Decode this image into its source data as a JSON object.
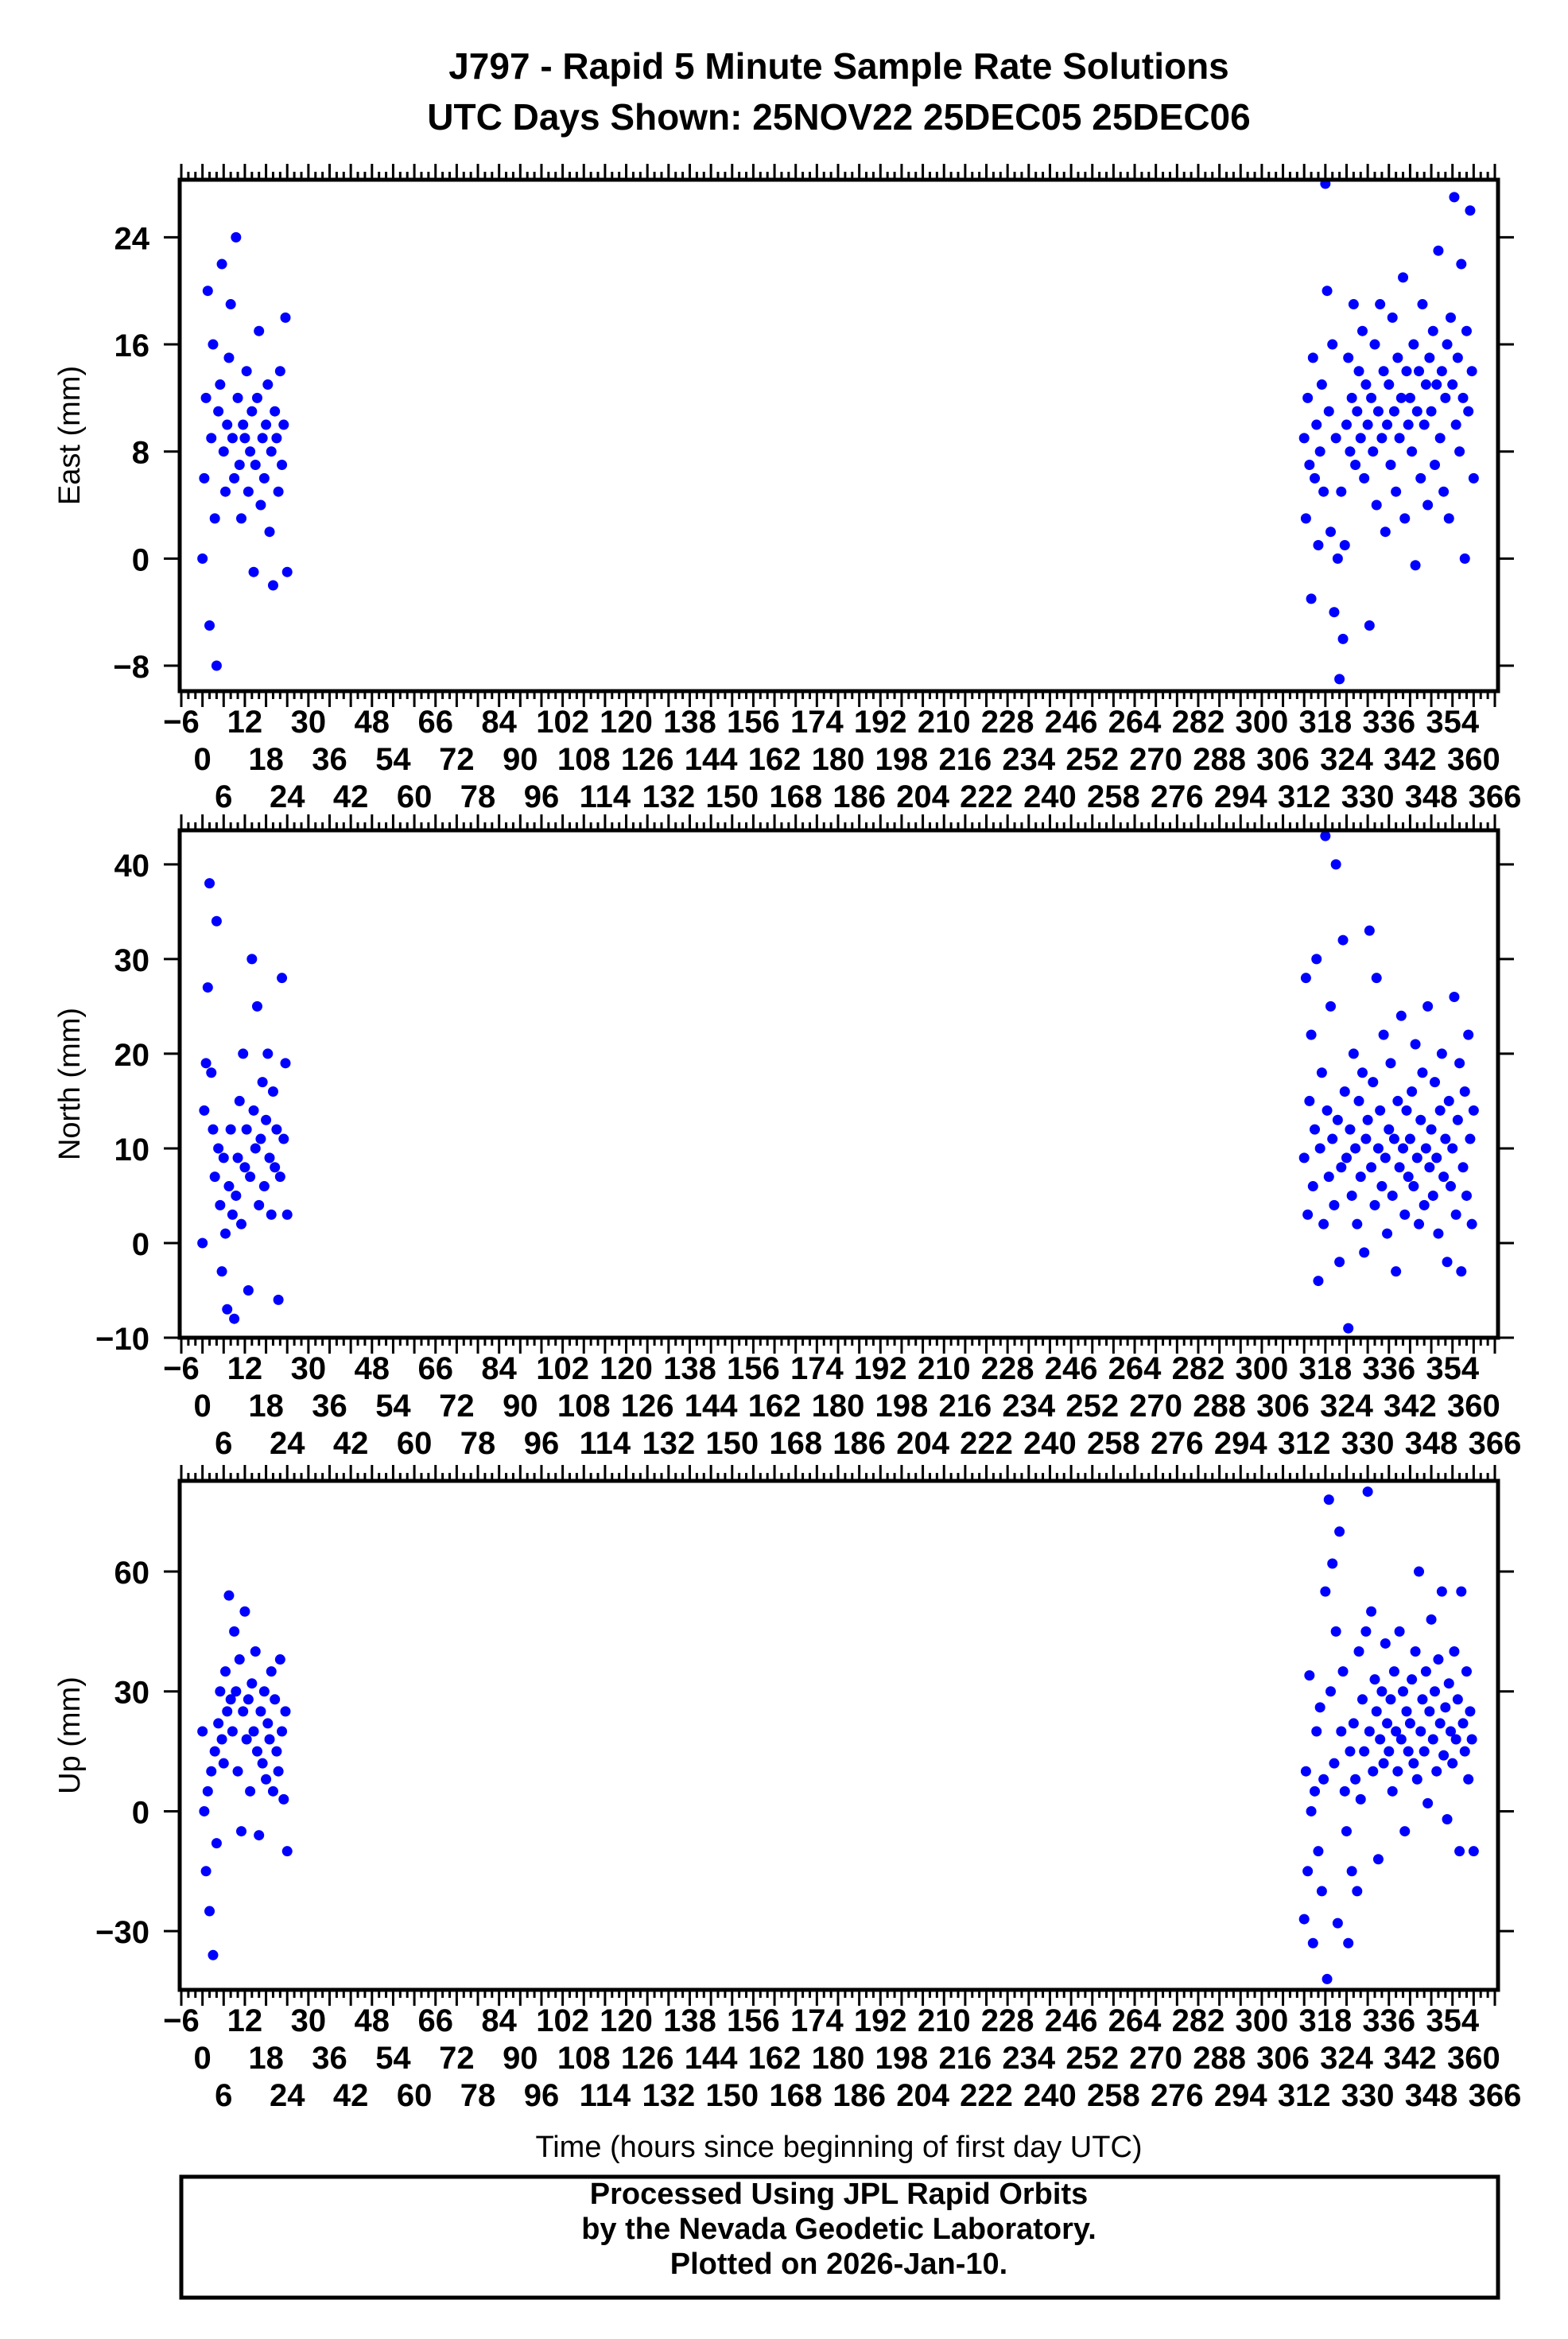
{
  "chart_data": {
    "type": "scatter",
    "title": "J797 - Rapid 5 Minute Sample Rate Solutions",
    "subtitle": "UTC Days Shown:  25NOV22 25DEC05 25DEC06",
    "xlabel": "Time (hours since beginning of first day UTC)",
    "xlim": [
      -6,
      366
    ],
    "xticks": {
      "start": -6,
      "end": 366,
      "step": 6,
      "minor_step": 2
    },
    "point_color": "#0000ff",
    "segments": [
      {
        "x_start": 0,
        "x_step": 0.5
      },
      {
        "x_start": 312,
        "x_step": 0.5
      }
    ],
    "panels": [
      {
        "name": "east",
        "ylabel": "East (mm)",
        "ylim": [
          -9.9,
          28.3
        ],
        "yticks": [
          -8,
          0,
          8,
          16,
          24
        ],
        "ytick_labels": [
          "−8",
          "0",
          "8",
          "16",
          "24"
        ],
        "series": [
          [
            0,
            6,
            12,
            20,
            -5,
            9,
            16,
            3,
            -8,
            11,
            13,
            22,
            8,
            5,
            10,
            15,
            19,
            9,
            6,
            24,
            12,
            7,
            3,
            10,
            9,
            14,
            5,
            8,
            11,
            -1,
            7,
            12,
            17,
            4,
            9,
            6,
            10,
            13,
            2,
            8,
            -2,
            11,
            9,
            5,
            14,
            7,
            10,
            18,
            -1
          ],
          [
            9,
            3,
            12,
            7,
            -3,
            15,
            6,
            10,
            1,
            8,
            13,
            5,
            28,
            20,
            11,
            2,
            16,
            -4,
            9,
            0,
            -9,
            5,
            -6,
            1,
            10,
            15,
            8,
            12,
            19,
            7,
            11,
            14,
            9,
            17,
            6,
            13,
            10,
            -5,
            12,
            8,
            16,
            4,
            11,
            19,
            9,
            14,
            2,
            10,
            13,
            7,
            18,
            11,
            5,
            15,
            9,
            12,
            21,
            3,
            14,
            10,
            12,
            8,
            16,
            -0.5,
            11,
            14,
            6,
            19,
            10,
            13,
            4,
            15,
            11,
            17,
            7,
            13,
            23,
            9,
            14,
            5,
            12,
            16,
            3,
            18,
            13,
            27,
            10,
            15,
            8,
            22,
            12,
            0,
            17,
            11,
            26,
            14,
            6
          ]
        ]
      },
      {
        "name": "north",
        "ylabel": "North (mm)",
        "ylim": [
          -10,
          43.6
        ],
        "yticks": [
          -10,
          0,
          10,
          20,
          30,
          40
        ],
        "ytick_labels": [
          "−10",
          "0",
          "10",
          "20",
          "30",
          "40"
        ],
        "series": [
          [
            0,
            14,
            19,
            27,
            38,
            18,
            12,
            7,
            34,
            10,
            4,
            -3,
            9,
            1,
            -7,
            6,
            12,
            3,
            -8,
            5,
            9,
            15,
            2,
            20,
            8,
            12,
            -5,
            7,
            30,
            14,
            10,
            25,
            4,
            11,
            17,
            6,
            13,
            20,
            9,
            3,
            16,
            8,
            12,
            -6,
            7,
            28,
            11,
            19,
            3
          ],
          [
            9,
            28,
            3,
            15,
            22,
            6,
            12,
            30,
            -4,
            10,
            18,
            2,
            43,
            14,
            7,
            25,
            11,
            4,
            40,
            13,
            -2,
            8,
            32,
            16,
            9,
            -9,
            12,
            5,
            20,
            10,
            2,
            15,
            7,
            18,
            -1,
            11,
            13,
            33,
            8,
            17,
            4,
            28,
            10,
            14,
            6,
            22,
            9,
            1,
            12,
            19,
            5,
            11,
            -3,
            15,
            8,
            24,
            10,
            3,
            14,
            7,
            11,
            16,
            6,
            21,
            9,
            2,
            13,
            18,
            4,
            10,
            25,
            8,
            12,
            5,
            17,
            9,
            1,
            14,
            20,
            7,
            11,
            -2,
            15,
            6,
            10,
            26,
            3,
            13,
            19,
            -3,
            8,
            16,
            5,
            22,
            11,
            2,
            14
          ]
        ]
      },
      {
        "name": "up",
        "ylabel": "Up (mm)",
        "ylim": [
          -44.7,
          82.7
        ],
        "yticks": [
          -30,
          0,
          30,
          60
        ],
        "ytick_labels": [
          "−30",
          "0",
          "30",
          "60"
        ],
        "series": [
          [
            20,
            0,
            -15,
            5,
            -25,
            10,
            -36,
            15,
            -8,
            22,
            30,
            18,
            12,
            35,
            25,
            54,
            28,
            20,
            45,
            30,
            10,
            38,
            -5,
            25,
            50,
            18,
            28,
            5,
            32,
            20,
            40,
            15,
            -6,
            25,
            12,
            30,
            8,
            22,
            18,
            35,
            5,
            28,
            15,
            10,
            38,
            20,
            3,
            25,
            -10
          ],
          [
            -27,
            10,
            -15,
            34,
            0,
            -33,
            5,
            20,
            -10,
            26,
            -20,
            8,
            55,
            -42,
            78,
            30,
            62,
            12,
            45,
            -28,
            70,
            20,
            35,
            5,
            -5,
            -33,
            15,
            -15,
            22,
            8,
            -20,
            40,
            3,
            28,
            15,
            45,
            80,
            20,
            50,
            10,
            33,
            25,
            -12,
            18,
            30,
            12,
            42,
            22,
            15,
            28,
            5,
            35,
            20,
            10,
            45,
            18,
            30,
            -5,
            25,
            15,
            22,
            33,
            12,
            40,
            8,
            60,
            20,
            28,
            15,
            35,
            2,
            25,
            48,
            18,
            30,
            10,
            38,
            22,
            55,
            14,
            26,
            -2,
            32,
            20,
            12,
            40,
            18,
            28,
            -10,
            55,
            22,
            15,
            35,
            8,
            25,
            18,
            -10
          ]
        ]
      }
    ]
  },
  "footer": {
    "line1": "Processed Using JPL Rapid Orbits",
    "line2": "by the Nevada Geodetic Laboratory.",
    "line3": "Plotted on 2026-Jan-10."
  }
}
